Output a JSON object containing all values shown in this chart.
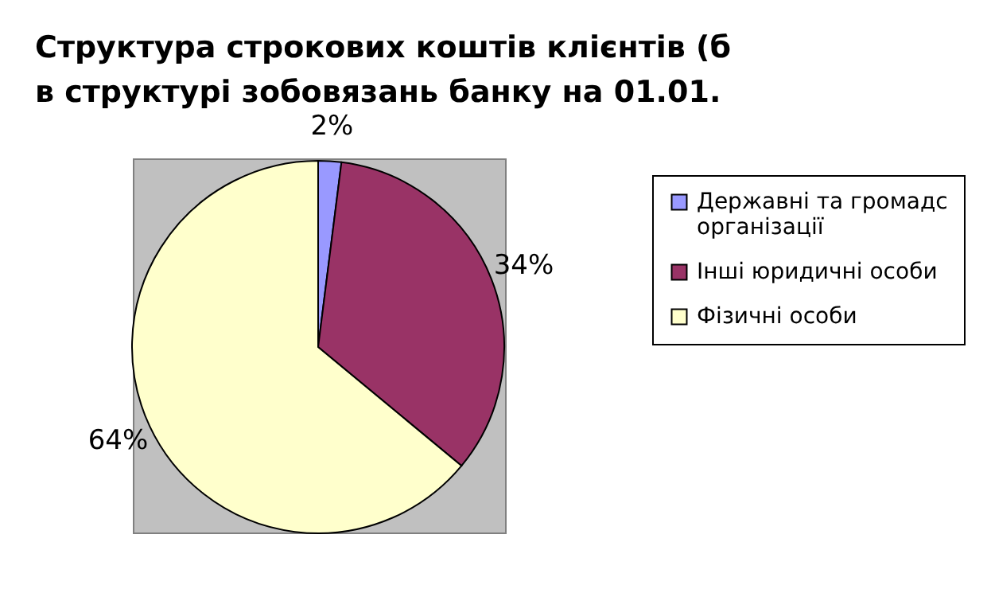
{
  "chart_data": {
    "type": "pie",
    "title": "Структура строкових коштів клієнтів (б\nв структурі зобовязань банку на 01.01.",
    "categories": [
      "Державні та громадс\nорганізації",
      "Інші юридичні особи",
      "Фізичні особи"
    ],
    "values": [
      2,
      34,
      64
    ],
    "colors": [
      "#9999ff",
      "#993366",
      "#ffffcc"
    ],
    "value_labels": [
      "2%",
      "34%",
      "64%"
    ],
    "legend": "right"
  }
}
